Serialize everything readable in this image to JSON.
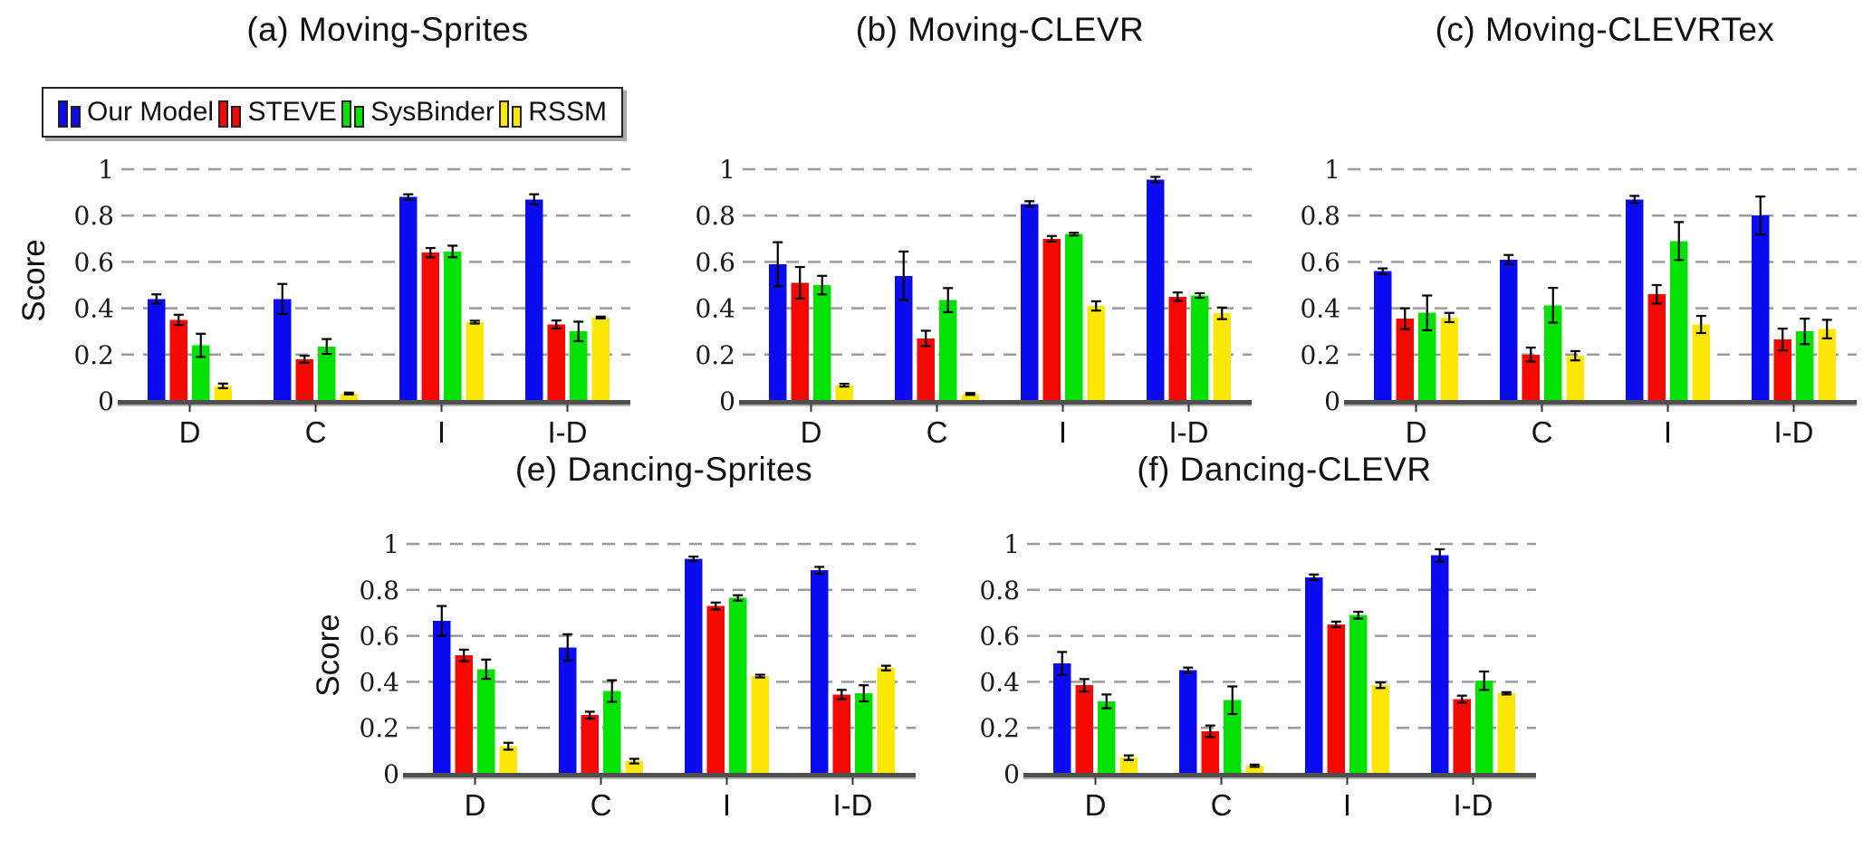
{
  "figure": {
    "background": "#ffffff",
    "ylabel": "Score",
    "categories": [
      "D",
      "C",
      "I",
      "I-D"
    ],
    "yticks": [
      "0",
      "0.2",
      "0.4",
      "0.6",
      "0.8",
      "1"
    ],
    "ylim": [
      0,
      1
    ],
    "grid": "horizontal dashed gridlines at 0.2 intervals",
    "legend": {
      "position": "top-left",
      "items": [
        {
          "label": "Our Model",
          "color": "#0b0bf0"
        },
        {
          "label": "STEVE",
          "color": "#f50800"
        },
        {
          "label": "SysBinder",
          "color": "#04e204"
        },
        {
          "label": "RSSM",
          "color": "#ffe705"
        }
      ]
    }
  },
  "chart_data": [
    {
      "id": "a",
      "type": "bar",
      "title": "(a) Moving-Sprites",
      "categories": [
        "D",
        "C",
        "I",
        "I-D"
      ],
      "ylabel": "Score",
      "ylim": [
        0,
        1
      ],
      "series": [
        {
          "name": "Our Model",
          "color": "#0b0bf0",
          "values": [
            0.44,
            0.44,
            0.88,
            0.87
          ],
          "errors": [
            0.02,
            0.065,
            0.012,
            0.022
          ]
        },
        {
          "name": "STEVE",
          "color": "#f50800",
          "values": [
            0.35,
            0.18,
            0.64,
            0.33
          ],
          "errors": [
            0.022,
            0.015,
            0.02,
            0.017
          ]
        },
        {
          "name": "SysBinder",
          "color": "#04e204",
          "values": [
            0.24,
            0.235,
            0.645,
            0.3
          ],
          "errors": [
            0.05,
            0.032,
            0.025,
            0.042
          ]
        },
        {
          "name": "RSSM",
          "color": "#ffe705",
          "values": [
            0.065,
            0.032,
            0.34,
            0.36
          ],
          "errors": [
            0.01,
            0.004,
            0.006,
            0.004
          ]
        }
      ]
    },
    {
      "id": "b",
      "type": "bar",
      "title": "(b) Moving-CLEVR",
      "categories": [
        "D",
        "C",
        "I",
        "I-D"
      ],
      "ylabel": "Score",
      "ylim": [
        0,
        1
      ],
      "series": [
        {
          "name": "Our Model",
          "color": "#0b0bf0",
          "values": [
            0.59,
            0.54,
            0.85,
            0.955
          ],
          "errors": [
            0.095,
            0.105,
            0.012,
            0.012
          ]
        },
        {
          "name": "STEVE",
          "color": "#f50800",
          "values": [
            0.51,
            0.27,
            0.7,
            0.45
          ],
          "errors": [
            0.068,
            0.033,
            0.012,
            0.018
          ]
        },
        {
          "name": "SysBinder",
          "color": "#04e204",
          "values": [
            0.5,
            0.435,
            0.72,
            0.455
          ],
          "errors": [
            0.04,
            0.052,
            0.006,
            0.01
          ]
        },
        {
          "name": "RSSM",
          "color": "#ffe705",
          "values": [
            0.068,
            0.03,
            0.41,
            0.378
          ],
          "errors": [
            0.006,
            0.004,
            0.02,
            0.025
          ]
        }
      ]
    },
    {
      "id": "c",
      "type": "bar",
      "title": "(c) Moving-CLEVRTex",
      "categories": [
        "D",
        "C",
        "I",
        "I-D"
      ],
      "ylabel": "Score",
      "ylim": [
        0,
        1
      ],
      "series": [
        {
          "name": "Our Model",
          "color": "#0b0bf0",
          "values": [
            0.56,
            0.61,
            0.87,
            0.8
          ],
          "errors": [
            0.012,
            0.02,
            0.015,
            0.082
          ]
        },
        {
          "name": "STEVE",
          "color": "#f50800",
          "values": [
            0.355,
            0.2,
            0.46,
            0.265
          ],
          "errors": [
            0.045,
            0.03,
            0.04,
            0.047
          ]
        },
        {
          "name": "SysBinder",
          "color": "#04e204",
          "values": [
            0.38,
            0.413,
            0.69,
            0.3
          ],
          "errors": [
            0.075,
            0.075,
            0.082,
            0.055
          ]
        },
        {
          "name": "RSSM",
          "color": "#ffe705",
          "values": [
            0.36,
            0.195,
            0.33,
            0.31
          ],
          "errors": [
            0.02,
            0.02,
            0.037,
            0.04
          ]
        }
      ]
    },
    {
      "id": "e",
      "type": "bar",
      "title": "(e) Dancing-Sprites",
      "categories": [
        "D",
        "C",
        "I",
        "I-D"
      ],
      "ylabel": "Score",
      "ylim": [
        0,
        1
      ],
      "series": [
        {
          "name": "Our Model",
          "color": "#0b0bf0",
          "values": [
            0.665,
            0.55,
            0.935,
            0.885
          ],
          "errors": [
            0.065,
            0.057,
            0.01,
            0.015
          ]
        },
        {
          "name": "STEVE",
          "color": "#f50800",
          "values": [
            0.515,
            0.255,
            0.73,
            0.345
          ],
          "errors": [
            0.025,
            0.015,
            0.015,
            0.02
          ]
        },
        {
          "name": "SysBinder",
          "color": "#04e204",
          "values": [
            0.455,
            0.36,
            0.765,
            0.35
          ],
          "errors": [
            0.042,
            0.047,
            0.012,
            0.035
          ]
        },
        {
          "name": "RSSM",
          "color": "#ffe705",
          "values": [
            0.12,
            0.055,
            0.425,
            0.46
          ],
          "errors": [
            0.015,
            0.01,
            0.006,
            0.01
          ]
        }
      ]
    },
    {
      "id": "f",
      "type": "bar",
      "title": "(f) Dancing-CLEVR",
      "categories": [
        "D",
        "C",
        "I",
        "I-D"
      ],
      "ylabel": "Score",
      "ylim": [
        0,
        1
      ],
      "series": [
        {
          "name": "Our Model",
          "color": "#0b0bf0",
          "values": [
            0.48,
            0.45,
            0.855,
            0.95
          ],
          "errors": [
            0.05,
            0.012,
            0.012,
            0.027
          ]
        },
        {
          "name": "STEVE",
          "color": "#f50800",
          "values": [
            0.385,
            0.185,
            0.65,
            0.325
          ],
          "errors": [
            0.027,
            0.025,
            0.012,
            0.015
          ]
        },
        {
          "name": "SysBinder",
          "color": "#04e204",
          "values": [
            0.315,
            0.32,
            0.69,
            0.405
          ],
          "errors": [
            0.03,
            0.06,
            0.015,
            0.04
          ]
        },
        {
          "name": "RSSM",
          "color": "#ffe705",
          "values": [
            0.07,
            0.035,
            0.385,
            0.35
          ],
          "errors": [
            0.01,
            0.005,
            0.012,
            0.005
          ]
        }
      ]
    }
  ]
}
